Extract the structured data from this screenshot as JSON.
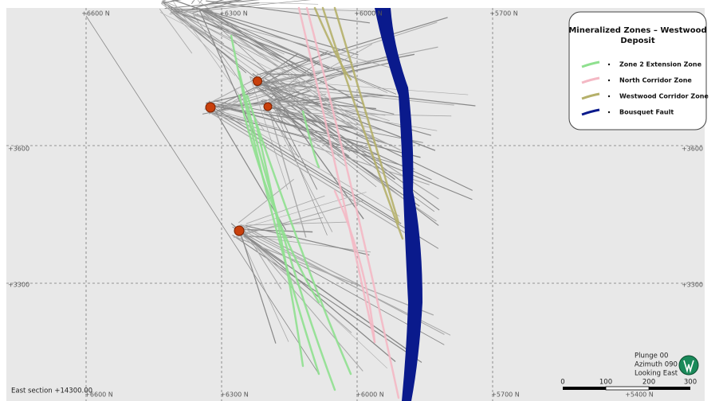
{
  "grid_labels": {
    "top": [
      "+6600 N",
      "+6300 N",
      "+6000 N",
      "+5700 N"
    ],
    "bottom": [
      "+6600 N",
      "+6300 N",
      "+6000 N",
      "+5700 N",
      "+5400 N"
    ],
    "left": [
      "+3600",
      "+3300"
    ],
    "right": [
      "+3600",
      "+3300"
    ]
  },
  "legend": {
    "title_lines": [
      "Mineralized Zones – Westwood",
      "Deposit"
    ],
    "items": [
      {
        "label": "Zone 2 Extension Zone",
        "color": "#8fe08f"
      },
      {
        "label": "North Corridor Zone",
        "color": "#f4b8c4"
      },
      {
        "label": "Westwood Corridor Zone",
        "color": "#b5b06a"
      },
      {
        "label": "Bousquet Fault",
        "color": "#0a1a8c"
      }
    ]
  },
  "section_label": "East section +14300.00",
  "view": [
    "Plunge 00",
    "Azimuth 090",
    "Looking East"
  ],
  "scale_bar": [
    "0",
    "100",
    "200",
    "300"
  ]
}
